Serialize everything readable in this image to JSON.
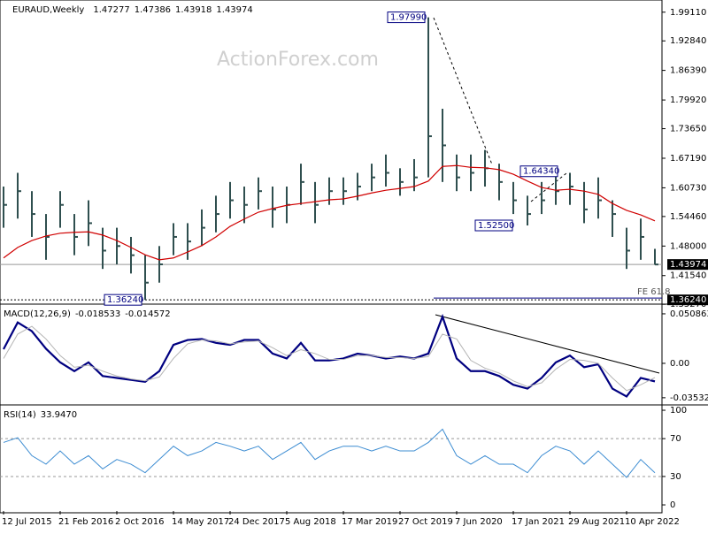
{
  "chart_data": [
    {
      "type": "ohlc",
      "title": "EURAUD,Weekly",
      "header_values": [
        1.47277,
        1.47386,
        1.43918,
        1.43974
      ],
      "watermark": "ActionForex.com",
      "categories": [
        "12 Jul 2015",
        null,
        null,
        null,
        "21 Feb 2016",
        null,
        null,
        null,
        "2 Oct 2016",
        null,
        null,
        null,
        "14 May 2017",
        null,
        null,
        null,
        "24 Dec 2017",
        null,
        null,
        null,
        "5 Aug 2018",
        null,
        null,
        null,
        "17 Mar 2019",
        null,
        null,
        null,
        "27 Oct 2019",
        null,
        null,
        null,
        "7 Jun 2020",
        null,
        null,
        null,
        "17 Jan 2021",
        null,
        null,
        null,
        "29 Aug 2021",
        null,
        null,
        null,
        "10 Apr 2022",
        null,
        null
      ],
      "series": [
        {
          "name": "EURAUD",
          "color": "#2f4f4f",
          "high": [
            1.61,
            1.64,
            1.6,
            1.55,
            1.6,
            1.55,
            1.58,
            1.52,
            1.52,
            1.5,
            1.46,
            1.48,
            1.53,
            1.53,
            1.56,
            1.59,
            1.62,
            1.61,
            1.63,
            1.61,
            1.61,
            1.66,
            1.62,
            1.63,
            1.63,
            1.64,
            1.66,
            1.68,
            1.65,
            1.67,
            1.9799,
            1.78,
            1.68,
            1.68,
            1.69,
            1.66,
            1.62,
            1.59,
            1.62,
            1.6434,
            1.64,
            1.62,
            1.63,
            1.58,
            1.52,
            1.54,
            1.47386
          ],
          "low": [
            1.52,
            1.54,
            1.5,
            1.45,
            1.52,
            1.46,
            1.48,
            1.43,
            1.44,
            1.42,
            1.3624,
            1.4,
            1.46,
            1.45,
            1.48,
            1.51,
            1.54,
            1.53,
            1.56,
            1.52,
            1.53,
            1.57,
            1.53,
            1.57,
            1.57,
            1.58,
            1.6,
            1.61,
            1.59,
            1.6,
            1.63,
            1.62,
            1.6,
            1.6,
            1.61,
            1.58,
            1.55,
            1.525,
            1.55,
            1.57,
            1.57,
            1.53,
            1.54,
            1.5,
            1.43,
            1.45,
            1.43918
          ],
          "close": [
            1.57,
            1.6,
            1.55,
            1.5,
            1.57,
            1.5,
            1.53,
            1.47,
            1.48,
            1.46,
            1.4,
            1.44,
            1.5,
            1.49,
            1.52,
            1.55,
            1.58,
            1.57,
            1.6,
            1.56,
            1.57,
            1.62,
            1.57,
            1.6,
            1.6,
            1.61,
            1.63,
            1.64,
            1.62,
            1.63,
            1.72,
            1.7,
            1.63,
            1.64,
            1.65,
            1.62,
            1.58,
            1.55,
            1.58,
            1.6,
            1.61,
            1.56,
            1.58,
            1.55,
            1.47,
            1.5,
            1.43974
          ]
        },
        {
          "name": "SMA",
          "color": "#d00000",
          "values": [
            1.454,
            1.477,
            1.492,
            1.502,
            1.508,
            1.51,
            1.511,
            1.504,
            1.492,
            1.477,
            1.461,
            1.45,
            1.454,
            1.467,
            1.481,
            1.5,
            1.523,
            1.539,
            1.554,
            1.562,
            1.569,
            1.573,
            1.577,
            1.581,
            1.583,
            1.589,
            1.596,
            1.602,
            1.606,
            1.61,
            1.622,
            1.654,
            1.656,
            1.652,
            1.651,
            1.647,
            1.637,
            1.622,
            1.608,
            1.602,
            1.604,
            1.6,
            1.593,
            1.573,
            1.558,
            1.548,
            1.535
          ]
        }
      ],
      "annotations": [
        {
          "value": 1.9799,
          "label": "1.97990"
        },
        {
          "value": 1.6434,
          "label": "1.64340"
        },
        {
          "value": 1.525,
          "label": "1.52500"
        },
        {
          "value": 1.3624,
          "label": "1.36240"
        }
      ],
      "fe_label": "FE 61.8",
      "ylim": [
        1.355,
        2.01
      ],
      "yticks": [
        {
          "value": 1.9911,
          "label": "1.99110"
        },
        {
          "value": 1.9284,
          "label": "1.92840"
        },
        {
          "value": 1.8639,
          "label": "1.86390"
        },
        {
          "value": 1.7992,
          "label": "1.79920"
        },
        {
          "value": 1.7365,
          "label": "1.73650"
        },
        {
          "value": 1.6719,
          "label": "1.67190"
        },
        {
          "value": 1.6073,
          "label": "1.60730"
        },
        {
          "value": 1.5446,
          "label": "1.54460"
        },
        {
          "value": 1.48,
          "label": "1.48000"
        },
        {
          "value": 1.4154,
          "label": "1.41540"
        },
        {
          "value": 1.3527,
          "label": "1.35270"
        }
      ]
    },
    {
      "type": "line",
      "title": "MACD(12,26,9)",
      "series": [
        {
          "name": "MACD",
          "color": "#000080",
          "values": [
            0.0145,
            0.042,
            0.033,
            0.015,
            0.001,
            -0.008,
            0.001,
            -0.013,
            -0.015,
            -0.017,
            -0.019,
            -0.008,
            0.019,
            0.024,
            0.025,
            0.021,
            0.019,
            0.024,
            0.024,
            0.01,
            0.005,
            0.021,
            0.003,
            0.003,
            0.005,
            0.01,
            0.008,
            0.005,
            0.007,
            0.005,
            0.01,
            0.048,
            0.005,
            -0.008,
            -0.008,
            -0.013,
            -0.022,
            -0.026,
            -0.015,
            0.001,
            0.008,
            -0.004,
            -0.001,
            -0.026,
            -0.034,
            -0.015,
            -0.018533
          ]
        },
        {
          "name": "Signal",
          "color": "#b4b4b4",
          "values": [
            0.005,
            0.03,
            0.038,
            0.025,
            0.008,
            -0.004,
            -0.002,
            -0.008,
            -0.013,
            -0.016,
            -0.018,
            -0.014,
            0.005,
            0.02,
            0.024,
            0.023,
            0.02,
            0.022,
            0.023,
            0.016,
            0.008,
            0.014,
            0.01,
            0.004,
            0.004,
            0.008,
            0.008,
            0.006,
            0.006,
            0.005,
            0.007,
            0.03,
            0.025,
            0.003,
            -0.005,
            -0.01,
            -0.018,
            -0.024,
            -0.02,
            -0.006,
            0.004,
            0.003,
            0.0,
            -0.015,
            -0.028,
            -0.022,
            -0.014572
          ]
        }
      ],
      "ylim": [
        -0.0418,
        0.0599
      ],
      "yticks": [
        0.050863,
        {
          "value": 0,
          "label": "0.00"
        },
        -0.035322
      ]
    },
    {
      "type": "line",
      "title": "RSI(14)",
      "header_value": {
        "value": 33.947,
        "label": "33.9470"
      },
      "series": [
        {
          "name": "RSI",
          "color": "#3c8cd2",
          "values": [
            66,
            71,
            52,
            43,
            57,
            43,
            52,
            38,
            48,
            43,
            34,
            48,
            62,
            52,
            57,
            66,
            62,
            57,
            62,
            48,
            57,
            66,
            48,
            57,
            62,
            62,
            57,
            62,
            57,
            57,
            66,
            80,
            52,
            43,
            52,
            43,
            43,
            34,
            52,
            62,
            57,
            43,
            57,
            43,
            29,
            48,
            33.947
          ]
        }
      ],
      "levels": [
        70,
        30
      ],
      "ylim": [
        -6.5,
        104.7
      ],
      "yticks": [
        100,
        70,
        30,
        0
      ]
    }
  ]
}
